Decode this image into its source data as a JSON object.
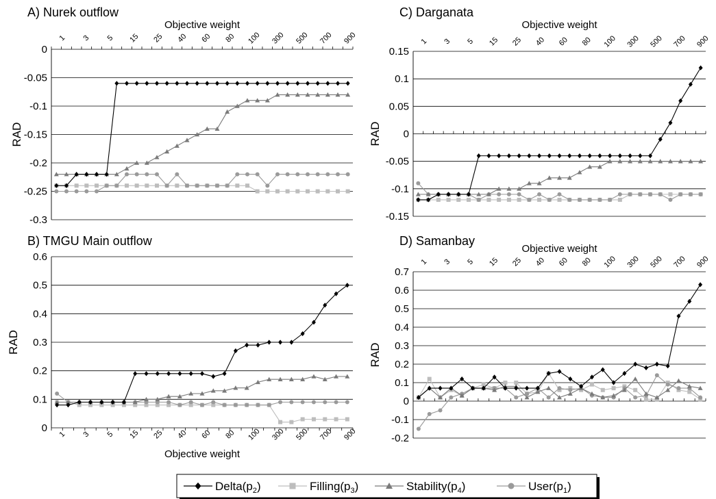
{
  "chart_data": [
    {
      "type": "line",
      "title": "A) Nurek outflow",
      "xlabel": "Objective weight",
      "xlabel_position": "top",
      "ylabel": "RAD",
      "ylim": [
        -0.3,
        0
      ],
      "yticks": [
        0,
        -0.05,
        -0.1,
        -0.15,
        -0.2,
        -0.25,
        -0.3
      ],
      "ytick_labels": [
        "0",
        "-0.05",
        "-0.1",
        "-0.15",
        "-0.2",
        "-0.25",
        "-0.3"
      ],
      "grid": "horizontal",
      "x_tick_labels": [
        "1",
        "3",
        "5",
        "15",
        "25",
        "40",
        "60",
        "80",
        "100",
        "300",
        "500",
        "700",
        "900"
      ],
      "series": [
        {
          "name": "Delta(p2)",
          "values": [
            -0.24,
            -0.24,
            -0.22,
            -0.22,
            -0.22,
            -0.22,
            -0.06,
            -0.06,
            -0.06,
            -0.06,
            -0.06,
            -0.06,
            -0.06,
            -0.06,
            -0.06,
            -0.06,
            -0.06,
            -0.06,
            -0.06,
            -0.06,
            -0.06,
            -0.06,
            -0.06,
            -0.06,
            -0.06,
            -0.06,
            -0.06,
            -0.06,
            -0.06,
            -0.06
          ]
        },
        {
          "name": "Filling(p3)",
          "values": [
            -0.24,
            -0.24,
            -0.24,
            -0.24,
            -0.24,
            -0.24,
            -0.24,
            -0.24,
            -0.24,
            -0.24,
            -0.24,
            -0.24,
            -0.24,
            -0.24,
            -0.24,
            -0.24,
            -0.24,
            -0.24,
            -0.24,
            -0.24,
            -0.25,
            -0.25,
            -0.25,
            -0.25,
            -0.25,
            -0.25,
            -0.25,
            -0.25,
            -0.25,
            -0.25
          ]
        },
        {
          "name": "Stability(p4)",
          "values": [
            -0.22,
            -0.22,
            -0.22,
            -0.22,
            -0.22,
            -0.22,
            -0.22,
            -0.21,
            -0.2,
            -0.2,
            -0.19,
            -0.18,
            -0.17,
            -0.16,
            -0.15,
            -0.14,
            -0.14,
            -0.11,
            -0.1,
            -0.09,
            -0.09,
            -0.09,
            -0.08,
            -0.08,
            -0.08,
            -0.08,
            -0.08,
            -0.08,
            -0.08,
            -0.08
          ]
        },
        {
          "name": "User(p1)",
          "values": [
            -0.25,
            -0.25,
            -0.25,
            -0.25,
            -0.25,
            -0.24,
            -0.24,
            -0.22,
            -0.22,
            -0.22,
            -0.22,
            -0.24,
            -0.22,
            -0.24,
            -0.24,
            -0.24,
            -0.24,
            -0.24,
            -0.22,
            -0.22,
            -0.22,
            -0.24,
            -0.22,
            -0.22,
            -0.22,
            -0.22,
            -0.22,
            -0.22,
            -0.22,
            -0.22
          ]
        }
      ]
    },
    {
      "type": "line",
      "title": "C) Darganata",
      "xlabel": "Objective weight",
      "xlabel_position": "top",
      "ylabel": "RAD",
      "ylim": [
        -0.15,
        0.15
      ],
      "yticks": [
        0.15,
        0.1,
        0.05,
        0,
        -0.05,
        -0.1,
        -0.15
      ],
      "ytick_labels": [
        "0.15",
        "0.1",
        "0.05",
        "0",
        "-0.05",
        "-0.1",
        "-0.15"
      ],
      "grid": "horizontal",
      "x_tick_labels": [
        "1",
        "3",
        "5",
        "15",
        "25",
        "40",
        "60",
        "80",
        "100",
        "300",
        "500",
        "700",
        "900"
      ],
      "series": [
        {
          "name": "Delta(p2)",
          "values": [
            -0.12,
            -0.12,
            -0.11,
            -0.11,
            -0.11,
            -0.11,
            -0.04,
            -0.04,
            -0.04,
            -0.04,
            -0.04,
            -0.04,
            -0.04,
            -0.04,
            -0.04,
            -0.04,
            -0.04,
            -0.04,
            -0.04,
            -0.04,
            -0.04,
            -0.04,
            -0.04,
            -0.04,
            -0.01,
            0.02,
            0.06,
            0.09,
            0.12
          ]
        },
        {
          "name": "Filling(p3)",
          "values": [
            -0.12,
            -0.12,
            -0.12,
            -0.12,
            -0.12,
            -0.12,
            -0.12,
            -0.12,
            -0.12,
            -0.12,
            -0.12,
            -0.12,
            -0.12,
            -0.12,
            -0.12,
            -0.12,
            -0.12,
            -0.12,
            -0.12,
            -0.12,
            -0.12,
            -0.11,
            -0.11,
            -0.11,
            -0.11,
            -0.11,
            -0.11,
            -0.11,
            -0.11
          ]
        },
        {
          "name": "Stability(p4)",
          "values": [
            -0.11,
            -0.11,
            -0.11,
            -0.11,
            -0.11,
            -0.11,
            -0.11,
            -0.11,
            -0.1,
            -0.1,
            -0.1,
            -0.09,
            -0.09,
            -0.08,
            -0.08,
            -0.08,
            -0.07,
            -0.06,
            -0.06,
            -0.05,
            -0.05,
            -0.05,
            -0.05,
            -0.05,
            -0.05,
            -0.05,
            -0.05,
            -0.05,
            -0.05
          ]
        },
        {
          "name": "User(p1)",
          "values": [
            -0.09,
            -0.11,
            -0.11,
            -0.11,
            -0.11,
            -0.11,
            -0.12,
            -0.11,
            -0.11,
            -0.11,
            -0.11,
            -0.12,
            -0.11,
            -0.12,
            -0.11,
            -0.12,
            -0.12,
            -0.12,
            -0.12,
            -0.12,
            -0.11,
            -0.11,
            -0.11,
            -0.11,
            -0.11,
            -0.12,
            -0.11,
            -0.11,
            -0.11
          ]
        }
      ]
    },
    {
      "type": "line",
      "title": "B) TMGU Main outflow",
      "xlabel": "Objective weight",
      "xlabel_position": "bottom",
      "ylabel": "RAD",
      "ylim": [
        0,
        0.6
      ],
      "yticks": [
        0.6,
        0.5,
        0.4,
        0.3,
        0.2,
        0.1,
        0
      ],
      "ytick_labels": [
        "0.6",
        "0.5",
        "0.4",
        "0.3",
        "0.2",
        "0.1",
        "0"
      ],
      "grid": "horizontal",
      "x_tick_labels": [
        "1",
        "3",
        "5",
        "15",
        "25",
        "40",
        "60",
        "80",
        "100",
        "300",
        "500",
        "700",
        "900"
      ],
      "series": [
        {
          "name": "Delta(p2)",
          "values": [
            0.08,
            0.08,
            0.09,
            0.09,
            0.09,
            0.09,
            0.09,
            0.19,
            0.19,
            0.19,
            0.19,
            0.19,
            0.19,
            0.19,
            0.18,
            0.19,
            0.27,
            0.29,
            0.29,
            0.3,
            0.3,
            0.3,
            0.33,
            0.37,
            0.43,
            0.47,
            0.5
          ]
        },
        {
          "name": "Filling(p3)",
          "values": [
            0.09,
            0.09,
            0.08,
            0.08,
            0.08,
            0.08,
            0.08,
            0.08,
            0.08,
            0.08,
            0.08,
            0.08,
            0.08,
            0.08,
            0.08,
            0.08,
            0.08,
            0.08,
            0.08,
            0.08,
            0.02,
            0.02,
            0.03,
            0.03,
            0.03,
            0.03,
            0.03
          ]
        },
        {
          "name": "Stability(p4)",
          "values": [
            0.09,
            0.09,
            0.09,
            0.09,
            0.09,
            0.09,
            0.09,
            0.09,
            0.1,
            0.1,
            0.11,
            0.11,
            0.12,
            0.12,
            0.13,
            0.13,
            0.14,
            0.14,
            0.16,
            0.17,
            0.17,
            0.17,
            0.17,
            0.18,
            0.17,
            0.18,
            0.18
          ]
        },
        {
          "name": "User(p1)",
          "values": [
            0.12,
            0.09,
            0.09,
            0.09,
            0.09,
            0.09,
            0.09,
            0.09,
            0.09,
            0.09,
            0.09,
            0.08,
            0.09,
            0.08,
            0.09,
            0.08,
            0.08,
            0.08,
            0.08,
            0.08,
            0.09,
            0.09,
            0.09,
            0.09,
            0.09,
            0.09,
            0.09
          ]
        }
      ]
    },
    {
      "type": "line",
      "title": "D) Samanbay",
      "xlabel": "Objective weight",
      "xlabel_position": "top",
      "ylabel": "RAD",
      "ylim": [
        -0.2,
        0.7
      ],
      "yticks": [
        0.7,
        0.6,
        0.5,
        0.4,
        0.3,
        0.2,
        0.1,
        0,
        -0.1,
        -0.2
      ],
      "ytick_labels": [
        "0.7",
        "0.6",
        "0.5",
        "0.4",
        "0.3",
        "0.2",
        "0.1",
        "0",
        "-0.1",
        "-0.2"
      ],
      "grid": "horizontal",
      "x_tick_labels": [
        "1",
        "3",
        "5",
        "15",
        "25",
        "40",
        "60",
        "80",
        "100",
        "300",
        "500",
        "700",
        "900"
      ],
      "series": [
        {
          "name": "Delta(p2)",
          "values": [
            0.02,
            0.07,
            0.07,
            0.07,
            0.12,
            0.07,
            0.07,
            0.13,
            0.07,
            0.07,
            0.07,
            0.07,
            0.15,
            0.16,
            0.12,
            0.08,
            0.13,
            0.17,
            0.1,
            0.15,
            0.2,
            0.18,
            0.2,
            0.19,
            0.46,
            0.54,
            0.63
          ]
        },
        {
          "name": "Filling(p3)",
          "values": [
            0.02,
            0.12,
            0.02,
            0.06,
            0.03,
            0.07,
            0.09,
            0.07,
            0.1,
            0.1,
            0.04,
            0.05,
            0.15,
            0.06,
            0.07,
            0.06,
            0.09,
            0.06,
            0.07,
            0.08,
            0.06,
            0.01,
            0.01,
            0.1,
            0.06,
            0.05,
            0.01
          ]
        },
        {
          "name": "Stability(p4)",
          "values": [
            0.02,
            0.07,
            0.02,
            0.07,
            0.03,
            0.07,
            0.07,
            0.06,
            0.08,
            0.08,
            0.02,
            0.05,
            0.07,
            0.02,
            0.04,
            0.07,
            0.04,
            0.02,
            0.03,
            0.06,
            0.12,
            0.04,
            0.02,
            0.06,
            0.11,
            0.08,
            0.07
          ]
        },
        {
          "name": "User(p1)",
          "values": [
            -0.15,
            -0.07,
            -0.05,
            0.02,
            0.04,
            0.07,
            0.07,
            0.07,
            0.07,
            0.02,
            0.04,
            0.07,
            0.02,
            0.07,
            0.06,
            0.07,
            0.03,
            0.02,
            0.02,
            0.07,
            0.02,
            0.03,
            0.14,
            0.09,
            0.07,
            0.07,
            0.02
          ]
        }
      ]
    }
  ],
  "legend": {
    "placement": "bottom-center",
    "items": [
      {
        "name": "Delta(p",
        "sub": "2",
        "close": ")",
        "marker": "diamond",
        "color": "#000000"
      },
      {
        "name": "Filling(p",
        "sub": "3",
        "close": ")",
        "marker": "square",
        "color": "#b9b9b9"
      },
      {
        "name": "Stability(p",
        "sub": "4",
        "close": ")",
        "marker": "triangle",
        "color": "#7a7a7a"
      },
      {
        "name": "User(p",
        "sub": "1",
        "close": ")",
        "marker": "circle",
        "color": "#999999"
      }
    ]
  },
  "series_colors": {
    "Delta(p2)": "#000000",
    "Filling(p3)": "#b9b9b9",
    "Stability(p4)": "#7a7a7a",
    "User(p1)": "#999999"
  }
}
